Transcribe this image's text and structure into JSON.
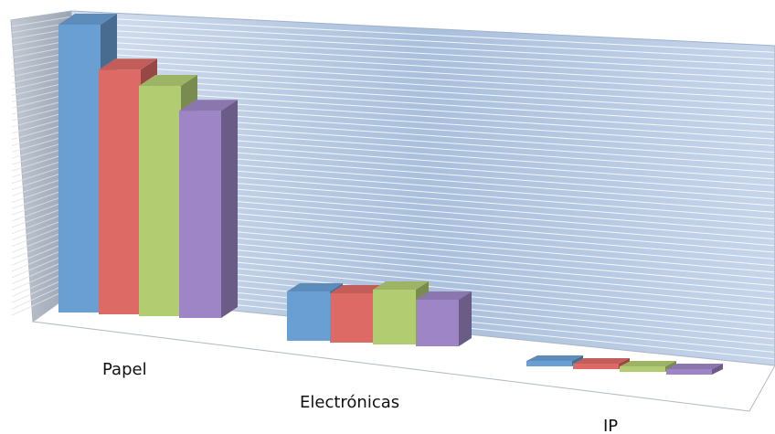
{
  "chart_data": {
    "type": "bar",
    "style": "3d-clustered-column",
    "categories": [
      "Papel",
      "Electrónicas",
      "IP"
    ],
    "series": [
      {
        "values": [
          100,
          18,
          2
        ],
        "color": "#6a9fd4"
      },
      {
        "values": [
          85,
          18,
          2
        ],
        "color": "#de6a66"
      },
      {
        "values": [
          80,
          20,
          2
        ],
        "color": "#b2cc72"
      },
      {
        "values": [
          72,
          17,
          2
        ],
        "color": "#9e86c6"
      }
    ],
    "title": "",
    "xlabel": "",
    "ylabel": "",
    "ylim": [
      0,
      100
    ],
    "grid": true,
    "legend": "none",
    "wall_color": "#b8cce4",
    "gridline_color": "#ffffff"
  }
}
